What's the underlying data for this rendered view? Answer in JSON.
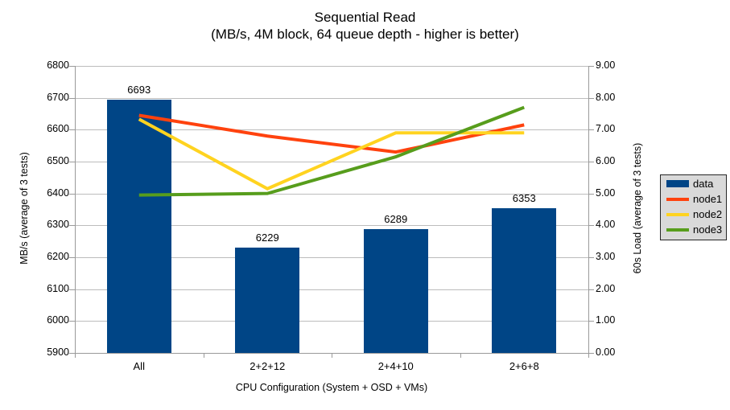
{
  "title": {
    "line1": "Sequential Read",
    "line2": "(MB/s, 4M block, 64 queue depth - higher is better)"
  },
  "chart_data": {
    "type": "combo-bar-line",
    "categories": [
      "All",
      "2+2+12",
      "2+4+10",
      "2+6+8"
    ],
    "bar_series": {
      "name": "data",
      "color": "#004586",
      "axis": "left",
      "values": [
        6693,
        6229,
        6289,
        6353
      ],
      "data_labels": [
        "6693",
        "6229",
        "6289",
        "6353"
      ]
    },
    "line_series": [
      {
        "name": "node1",
        "color": "#FF420E",
        "axis": "right",
        "values": [
          7.45,
          6.8,
          6.3,
          7.15
        ]
      },
      {
        "name": "node2",
        "color": "#FFD320",
        "axis": "right",
        "values": [
          7.33,
          5.15,
          6.9,
          6.9
        ]
      },
      {
        "name": "node3",
        "color": "#579D1C",
        "axis": "right",
        "values": [
          4.95,
          5.0,
          6.15,
          7.7
        ]
      }
    ],
    "left_axis": {
      "title": "MB/s (average of 3 tests)",
      "min": 5900,
      "max": 6800,
      "step": 100,
      "tick_labels": [
        "5900",
        "6000",
        "6100",
        "6200",
        "6300",
        "6400",
        "6500",
        "6600",
        "6700",
        "6800"
      ]
    },
    "right_axis": {
      "title": "60s Load (average of 3 tests)",
      "min": 0,
      "max": 9,
      "step": 1,
      "tick_labels": [
        "0.00",
        "1.00",
        "2.00",
        "3.00",
        "4.00",
        "5.00",
        "6.00",
        "7.00",
        "8.00",
        "9.00"
      ]
    },
    "x_axis": {
      "title": "CPU Configuration (System + OSD + VMs)"
    },
    "legend": {
      "position": "right",
      "items": [
        {
          "label": "data",
          "color": "#004586",
          "marker": "rect"
        },
        {
          "label": "node1",
          "color": "#FF420E",
          "marker": "line"
        },
        {
          "label": "node2",
          "color": "#FFD320",
          "marker": "line"
        },
        {
          "label": "node3",
          "color": "#579D1C",
          "marker": "line"
        }
      ]
    },
    "grid": true,
    "colors": {
      "background": "#FFFFFF",
      "grid": "#BCBCBC",
      "axis": "#9A9A9A",
      "text": "#000000",
      "legend_bg": "#D9D9D9",
      "legend_border": "#262626"
    }
  }
}
